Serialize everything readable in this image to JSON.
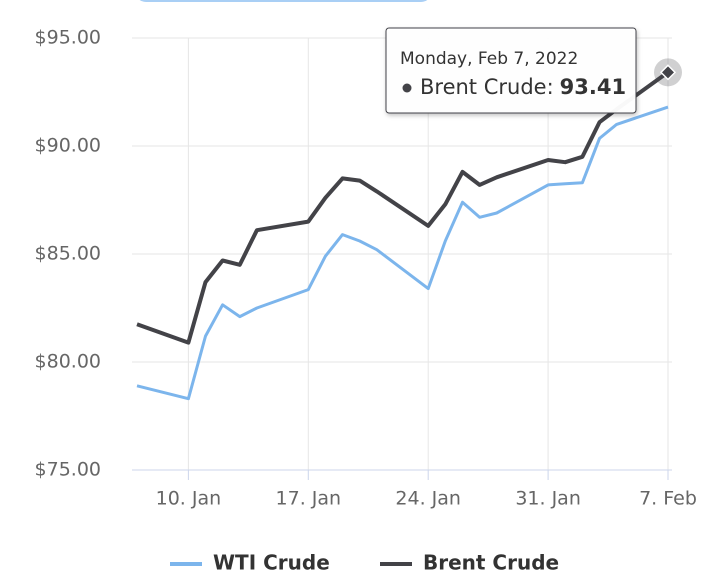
{
  "chart_data": {
    "type": "line",
    "x": [
      "2022-01-07",
      "2022-01-10",
      "2022-01-11",
      "2022-01-12",
      "2022-01-13",
      "2022-01-14",
      "2022-01-17",
      "2022-01-18",
      "2022-01-19",
      "2022-01-20",
      "2022-01-21",
      "2022-01-24",
      "2022-01-25",
      "2022-01-26",
      "2022-01-27",
      "2022-01-28",
      "2022-01-31",
      "2022-02-01",
      "2022-02-02",
      "2022-02-03",
      "2022-02-04",
      "2022-02-07"
    ],
    "series": [
      {
        "name": "WTI Crude",
        "color": "#7cb5ec",
        "values": [
          78.9,
          78.3,
          81.2,
          82.65,
          82.1,
          82.5,
          83.35,
          84.9,
          85.9,
          85.6,
          85.2,
          83.4,
          85.6,
          87.4,
          86.7,
          86.9,
          88.2,
          88.25,
          88.3,
          90.35,
          91.0,
          91.8
        ]
      },
      {
        "name": "Brent Crude",
        "color": "#434348",
        "values": [
          81.75,
          80.9,
          83.7,
          84.7,
          84.5,
          86.1,
          86.5,
          87.6,
          88.5,
          88.4,
          87.9,
          86.3,
          87.3,
          88.8,
          88.2,
          88.55,
          89.35,
          89.25,
          89.5,
          91.1,
          91.7,
          93.41
        ]
      }
    ],
    "xlim": [
      "2022-01-07",
      "2022-02-07"
    ],
    "xticks": [
      {
        "value": "2022-01-10",
        "label": "10. Jan"
      },
      {
        "value": "2022-01-17",
        "label": "17. Jan"
      },
      {
        "value": "2022-01-24",
        "label": "24. Jan"
      },
      {
        "value": "2022-01-31",
        "label": "31. Jan"
      },
      {
        "value": "2022-02-07",
        "label": "7. Feb"
      }
    ],
    "ylim": [
      75,
      95
    ],
    "yticks": [
      {
        "value": 75,
        "label": "$75.00"
      },
      {
        "value": 80,
        "label": "$80.00"
      },
      {
        "value": 85,
        "label": "$85.00"
      },
      {
        "value": 90,
        "label": "$90.00"
      },
      {
        "value": 95,
        "label": "$95.00"
      }
    ],
    "grid": true,
    "legend": "bottom",
    "tooltip": {
      "date": "Monday, Feb 7, 2022",
      "label": "Brent Crude:",
      "value": 93.41
    }
  }
}
